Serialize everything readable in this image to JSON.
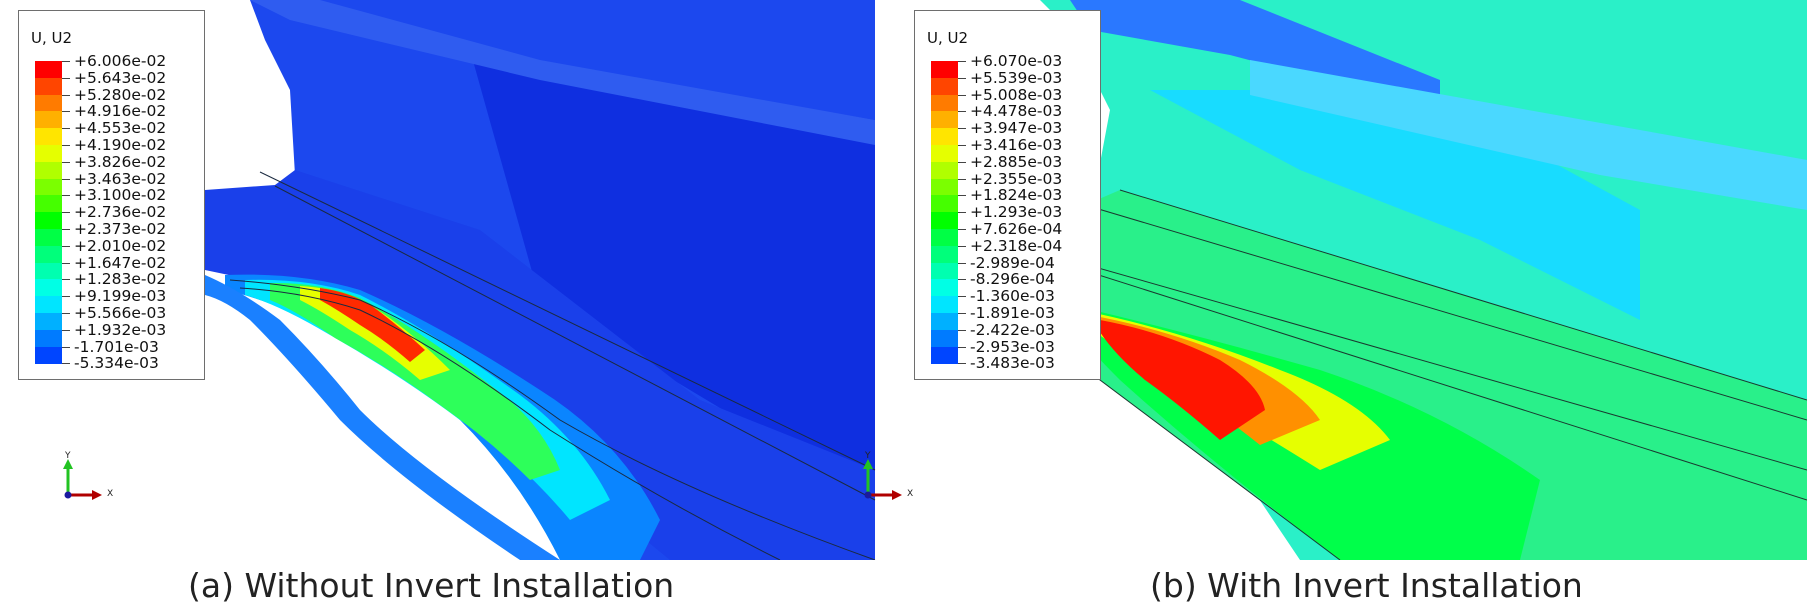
{
  "panels": [
    {
      "legend": {
        "title": "U, U2",
        "labels": [
          "+6.006e-02",
          "+5.643e-02",
          "+5.280e-02",
          "+4.916e-02",
          "+4.553e-02",
          "+4.190e-02",
          "+3.826e-02",
          "+3.463e-02",
          "+3.100e-02",
          "+2.736e-02",
          "+2.373e-02",
          "+2.010e-02",
          "+1.647e-02",
          "+1.283e-02",
          "+9.199e-03",
          "+5.566e-03",
          "+1.932e-03",
          "-1.701e-03",
          "-5.334e-03"
        ]
      },
      "caption": "(a) Without Invert Installation"
    },
    {
      "legend": {
        "title": "U, U2",
        "labels": [
          "+6.070e-03",
          "+5.539e-03",
          "+5.008e-03",
          "+4.478e-03",
          "+3.947e-03",
          "+3.416e-03",
          "+2.885e-03",
          "+2.355e-03",
          "+1.824e-03",
          "+1.293e-03",
          "+7.626e-04",
          "+2.318e-04",
          "-2.989e-04",
          "-8.296e-04",
          "-1.360e-03",
          "-1.891e-03",
          "-2.422e-03",
          "-2.953e-03",
          "-3.483e-03"
        ]
      },
      "caption": "(b) With Invert Installation"
    }
  ],
  "colormap": [
    "#ff0000",
    "#ff4500",
    "#ff7b00",
    "#ffb000",
    "#ffe500",
    "#e5ff00",
    "#b0ff00",
    "#7bff00",
    "#45ff00",
    "#00ff00",
    "#00ff45",
    "#00ff7b",
    "#00ffb0",
    "#00ffe5",
    "#00e5ff",
    "#00b0ff",
    "#007bff",
    "#0045ff",
    "#0000ff"
  ],
  "triad": {
    "y_label": "Y",
    "x_label": "X"
  }
}
